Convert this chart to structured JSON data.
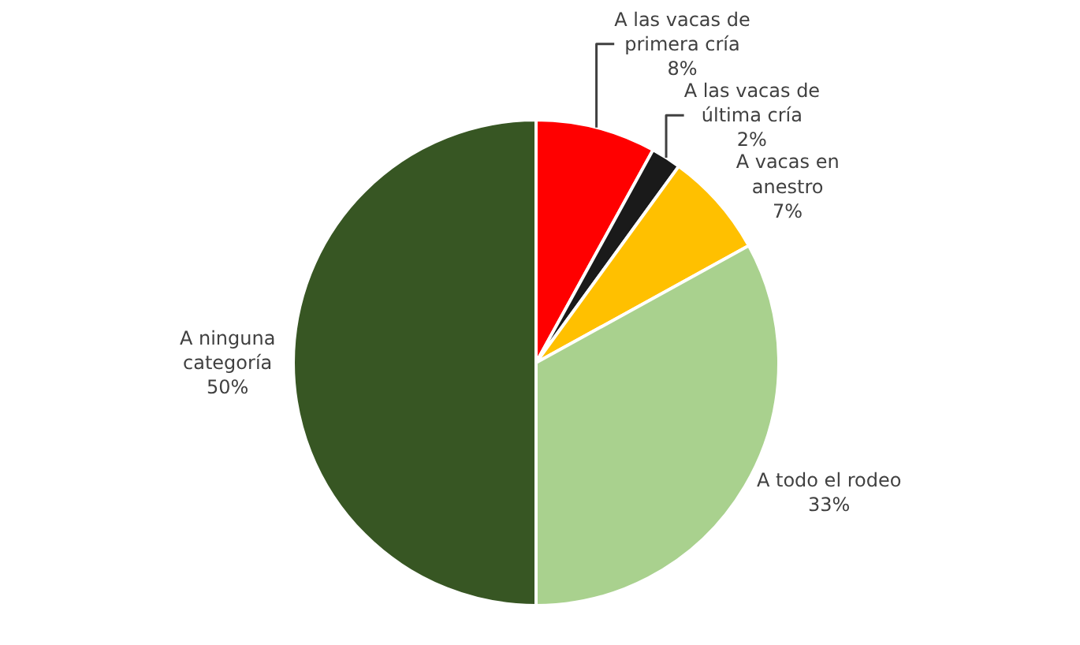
{
  "chart_data": {
    "type": "pie",
    "categories": [
      "A las vacas de primera cría",
      "A las vacas de última cría",
      "A vacas en anestro",
      "A todo el rodeo",
      "A ninguna categoría"
    ],
    "values": [
      8,
      2,
      7,
      33,
      50
    ],
    "colors": [
      "#ff0000",
      "#1a1a1a",
      "#ffc000",
      "#a9d18e",
      "#375623"
    ],
    "value_labels": [
      "8%",
      "2%",
      "7%",
      "33%",
      "50%"
    ],
    "legend": false
  }
}
